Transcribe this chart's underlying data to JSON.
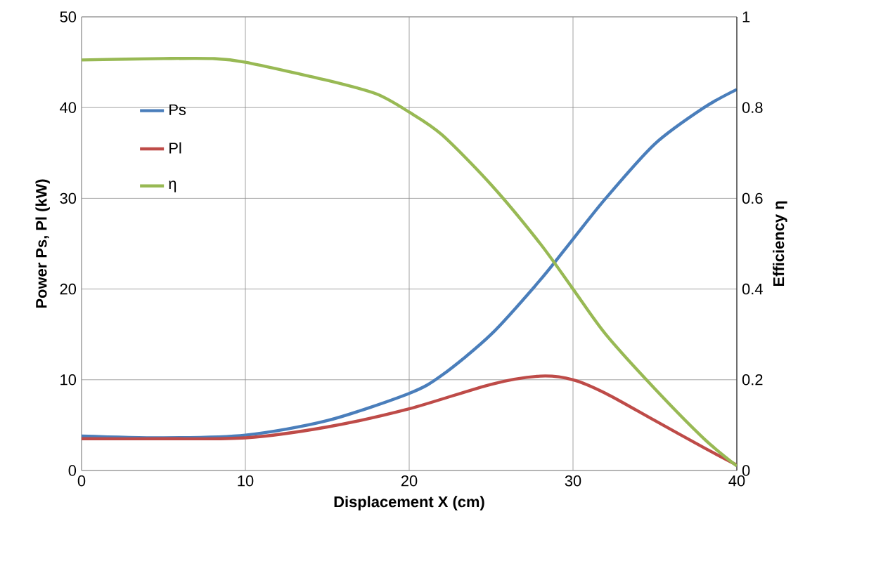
{
  "chart_data": {
    "type": "line",
    "xlabel": "Displacement X (cm)",
    "ylabel": "Power Ps, Pl (kW)",
    "y2label": "Efficiency η",
    "xlim": [
      0,
      40
    ],
    "ylim": [
      0,
      50
    ],
    "y2lim": [
      0,
      1
    ],
    "xticks": [
      0,
      10,
      20,
      30,
      40
    ],
    "yticks": [
      0,
      10,
      20,
      30,
      40,
      50
    ],
    "y2ticks": [
      0,
      0.2,
      0.4,
      0.6,
      0.8,
      1
    ],
    "grid": true,
    "legend": "top left",
    "marker": "none",
    "line_style": "solid",
    "series": [
      {
        "name": "Ps",
        "color": "#4a7ebb",
        "x": [
          0,
          5,
          10,
          15,
          20,
          22,
          25,
          28,
          30,
          32,
          35,
          38,
          40
        ],
        "values": [
          3.8,
          3.6,
          3.9,
          5.5,
          8.5,
          10.5,
          15,
          21,
          25.5,
          30,
          36,
          40,
          42
        ]
      },
      {
        "name": "Pl",
        "color": "#be4b48",
        "x": [
          0,
          5,
          10,
          15,
          20,
          25,
          28,
          30,
          32,
          35,
          38,
          40
        ],
        "values": [
          3.5,
          3.5,
          3.6,
          4.8,
          6.8,
          9.5,
          10.4,
          10,
          8.5,
          5.5,
          2.5,
          0.6
        ]
      },
      {
        "name": "η",
        "color": "#98b954",
        "axis": "y2",
        "x": [
          0,
          5,
          8,
          10,
          15,
          18,
          20,
          22,
          25,
          28,
          30,
          32,
          35,
          38,
          40
        ],
        "values": [
          0.905,
          0.908,
          0.908,
          0.9,
          0.86,
          0.83,
          0.79,
          0.74,
          0.63,
          0.5,
          0.4,
          0.3,
          0.18,
          0.07,
          0.01
        ]
      }
    ]
  }
}
